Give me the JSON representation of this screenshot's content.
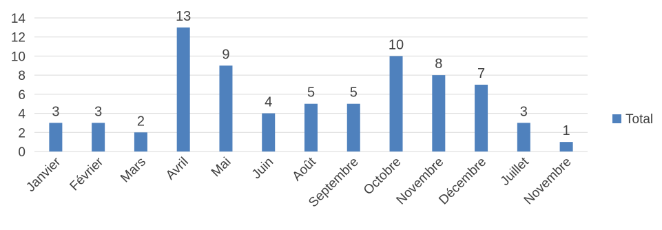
{
  "chart_data": {
    "type": "bar",
    "title": "",
    "xlabel": "",
    "ylabel": "",
    "categories": [
      "Janvier",
      "Février",
      "Mars",
      "Avril",
      "Mai",
      "Juin",
      "Août",
      "Septembre",
      "Octobre",
      "Novembre",
      "Décembre",
      "Juillet",
      "Novembre"
    ],
    "series": [
      {
        "name": "Total",
        "values": [
          3,
          3,
          2,
          13,
          9,
          4,
          5,
          5,
          10,
          8,
          7,
          3,
          1
        ],
        "color": "#4f81bd"
      }
    ],
    "ylim": [
      0,
      14
    ],
    "yticks": [
      0,
      2,
      4,
      6,
      8,
      10,
      12,
      14
    ],
    "grid": true,
    "gridColor": "#d9d9d9",
    "legend": {
      "position": "right",
      "entries": [
        "Total"
      ]
    },
    "data_labels": true
  }
}
